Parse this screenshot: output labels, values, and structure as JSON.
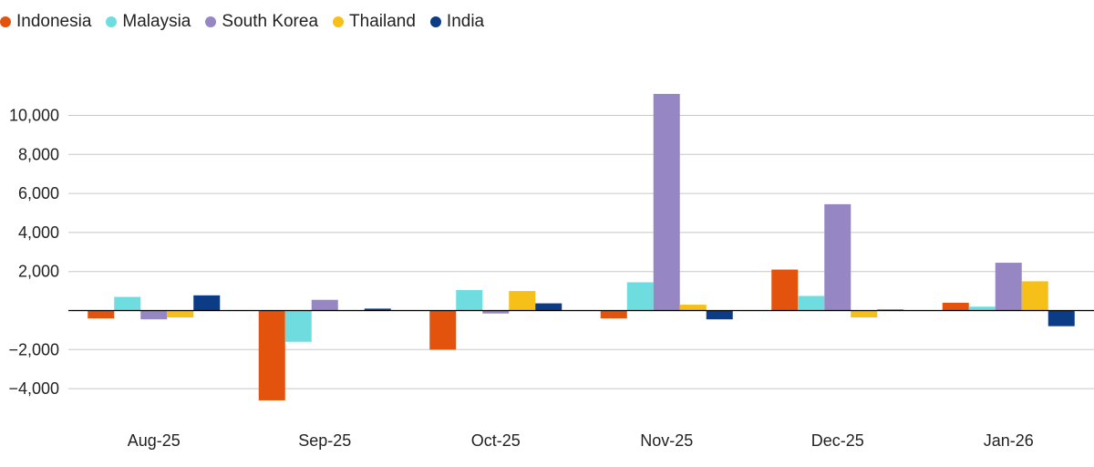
{
  "chart_data": {
    "type": "bar",
    "categories": [
      "Aug-25",
      "Sep-25",
      "Oct-25",
      "Nov-25",
      "Dec-25",
      "Jan-26"
    ],
    "series": [
      {
        "name": "Indonesia",
        "color": "#e4530e",
        "values": [
          -400,
          -4600,
          -2000,
          -400,
          2100,
          400
        ]
      },
      {
        "name": "Malaysia",
        "color": "#6fdde0",
        "values": [
          700,
          -1600,
          1050,
          1450,
          750,
          200
        ]
      },
      {
        "name": "South Korea",
        "color": "#9686c4",
        "values": [
          -450,
          550,
          -150,
          11100,
          5450,
          2450
        ]
      },
      {
        "name": "Thailand",
        "color": "#f6c018",
        "values": [
          -350,
          0,
          1000,
          300,
          -350,
          1500
        ]
      },
      {
        "name": "India",
        "color": "#0b3c85",
        "values": [
          780,
          100,
          370,
          -450,
          50,
          -800
        ]
      }
    ],
    "yticks": [
      -4000,
      -2000,
      2000,
      4000,
      6000,
      8000,
      10000
    ],
    "ytick_labels": [
      "−4,000",
      "−2,000",
      "2,000",
      "4,000",
      "6,000",
      "8,000",
      "10,000"
    ],
    "ylim": [
      -5000,
      11500
    ],
    "grid": true,
    "legend_position": "top-left"
  }
}
